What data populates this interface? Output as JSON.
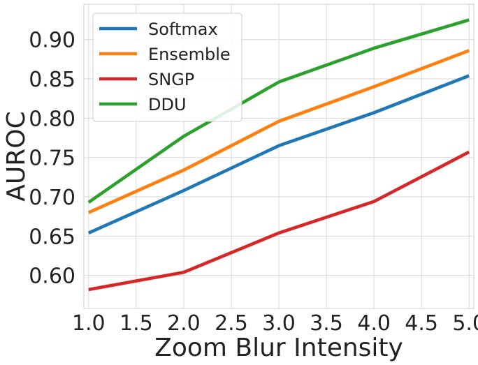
{
  "chart_data": {
    "type": "line",
    "xlabel": "Zoom Blur Intensity",
    "ylabel": "AUROC",
    "x": [
      1,
      2,
      3,
      4,
      5
    ],
    "xlim": [
      0.95,
      5.05
    ],
    "ylim": [
      0.558,
      0.945
    ],
    "xticks": [
      "1.0",
      "1.5",
      "2.0",
      "2.5",
      "3.0",
      "3.5",
      "4.0",
      "4.5",
      "5.0"
    ],
    "yticks": [
      "0.60",
      "0.65",
      "0.70",
      "0.75",
      "0.80",
      "0.85",
      "0.90"
    ],
    "grid": true,
    "legend_position": "top-left",
    "series": [
      {
        "name": "Softmax",
        "color": "#1f77b4",
        "values": [
          0.654,
          0.708,
          0.765,
          0.807,
          0.854
        ]
      },
      {
        "name": "Ensemble",
        "color": "#ff7f0e",
        "values": [
          0.68,
          0.734,
          0.796,
          0.84,
          0.886
        ]
      },
      {
        "name": "SNGP",
        "color": "#d62728",
        "values": [
          0.582,
          0.604,
          0.654,
          0.694,
          0.757
        ]
      },
      {
        "name": "DDU",
        "color": "#2ca02c",
        "values": [
          0.693,
          0.777,
          0.846,
          0.889,
          0.925
        ]
      }
    ]
  }
}
